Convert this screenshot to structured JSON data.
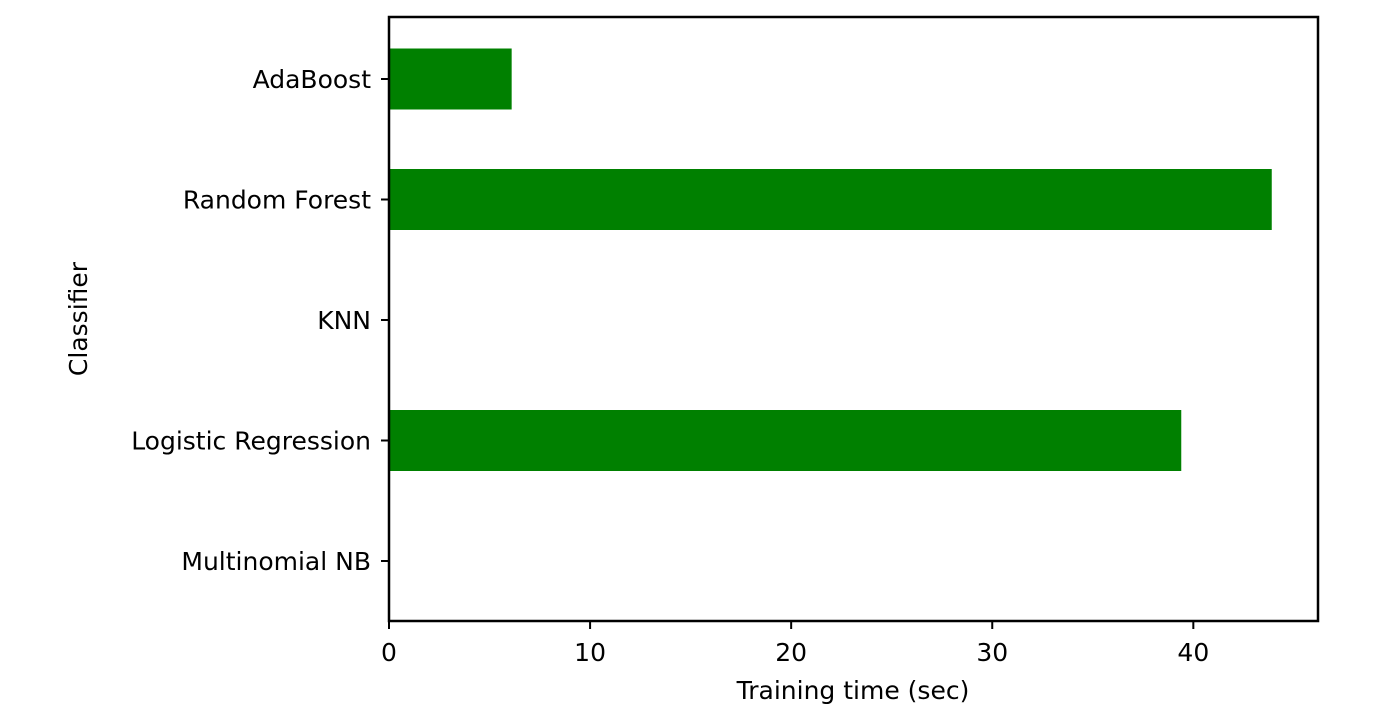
{
  "chart_data": {
    "type": "bar",
    "orientation": "horizontal",
    "categories": [
      "AdaBoost",
      "Random Forest",
      "KNN",
      "Logistic Regression",
      "Multinomial NB"
    ],
    "values": [
      6.1,
      43.9,
      0.0,
      39.4,
      0.0
    ],
    "xlabel": "Training time (sec)",
    "ylabel": "Classifier",
    "xlim": [
      0,
      46.2
    ],
    "xticks": [
      0,
      10,
      20,
      30,
      40
    ],
    "grid": false,
    "bar_color": "#008000"
  }
}
